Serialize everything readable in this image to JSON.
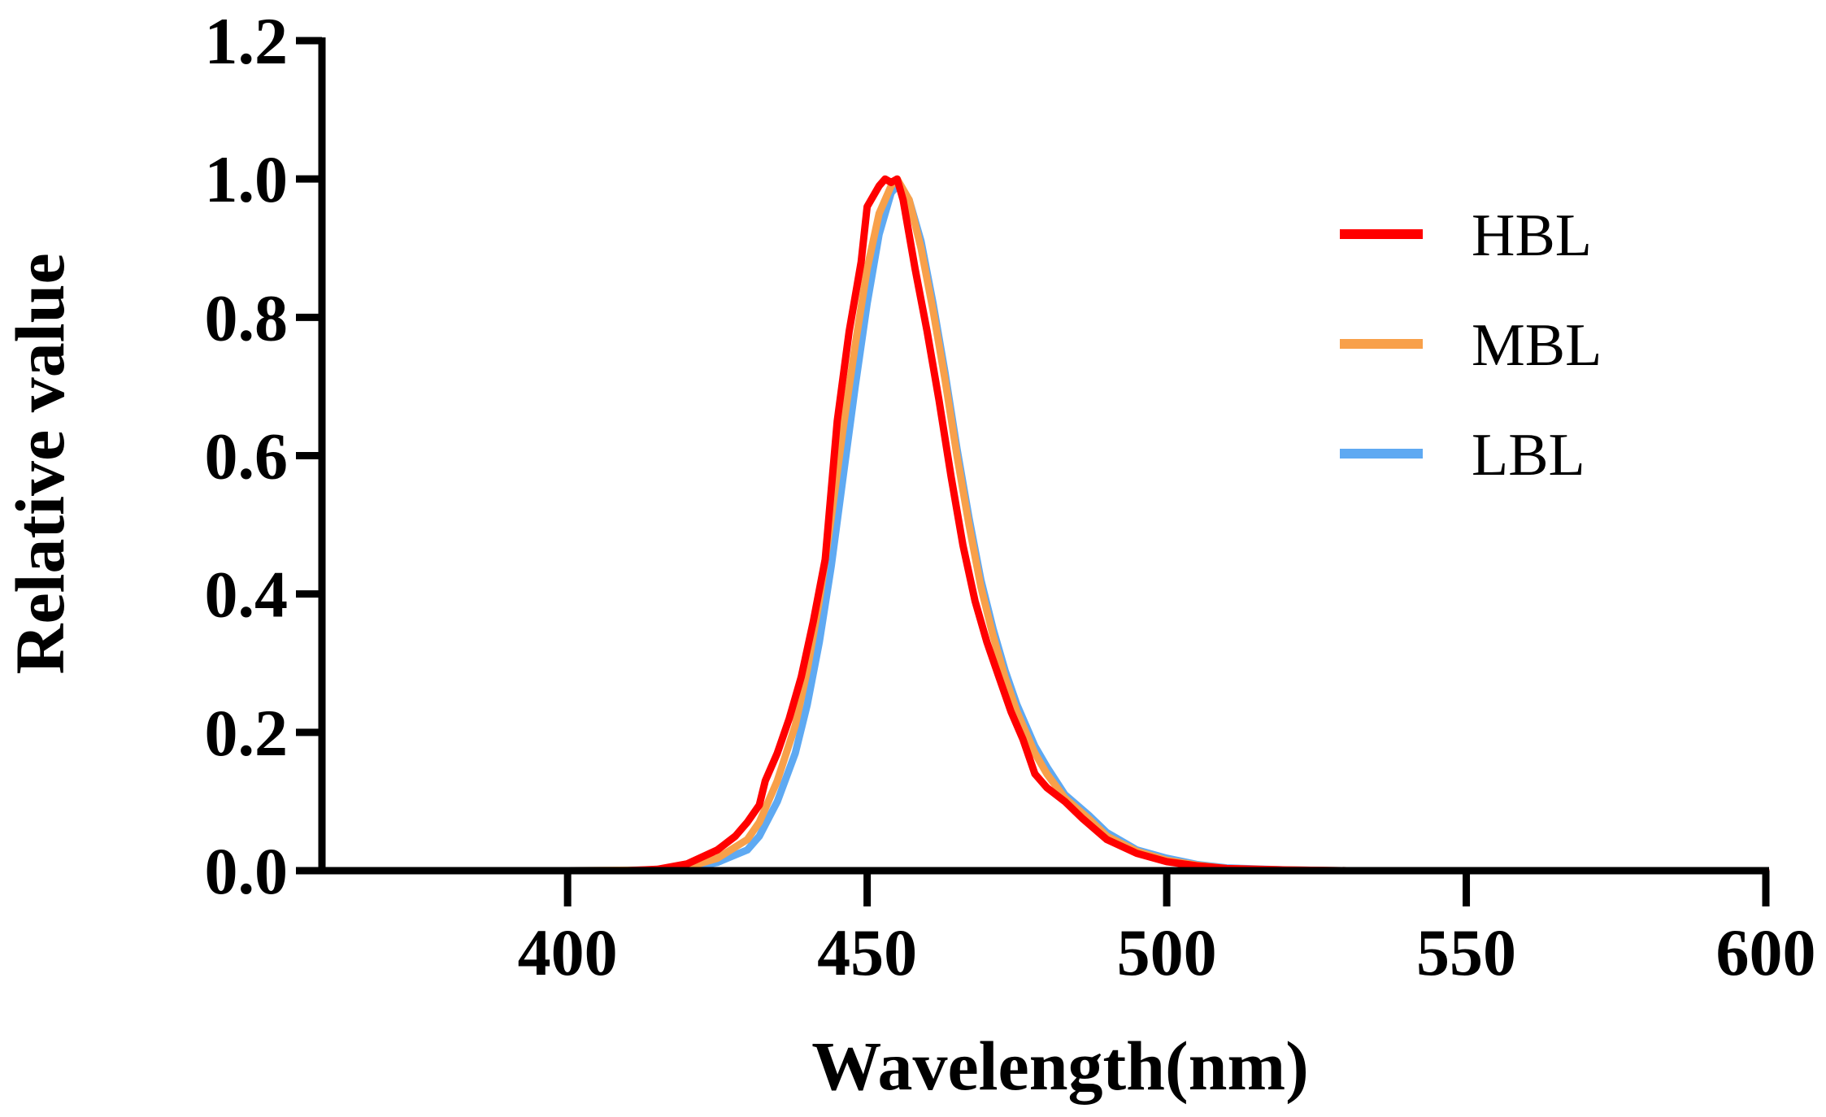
{
  "chart_data": {
    "type": "line",
    "title": "",
    "xlabel": "Wavelength(nm)",
    "ylabel": "Relative value",
    "xlim": [
      359,
      600
    ],
    "ylim": [
      0,
      1.2
    ],
    "xticks": [
      400,
      450,
      500,
      550,
      600
    ],
    "xtick_labels": [
      "400",
      "450",
      "500",
      "550",
      "600"
    ],
    "yticks": [
      0,
      0.2,
      0.4,
      0.6,
      0.8,
      1.0,
      1.2
    ],
    "ytick_labels": [
      "0.0",
      "0.2",
      "0.4",
      "0.6",
      "0.8",
      "1.0",
      "1.2"
    ],
    "grid": false,
    "legend_position": "top-right",
    "colors": {
      "HBL": "#ff0000",
      "MBL": "#f8a04a",
      "LBL": "#5ea9f2",
      "axis": "#000000"
    },
    "series": [
      {
        "name": "LBL",
        "points": [
          [
            360,
            0
          ],
          [
            400,
            0
          ],
          [
            415,
            0.001
          ],
          [
            420,
            0.003
          ],
          [
            425,
            0.012
          ],
          [
            430,
            0.03
          ],
          [
            432,
            0.05
          ],
          [
            435,
            0.1
          ],
          [
            438,
            0.17
          ],
          [
            440,
            0.24
          ],
          [
            442,
            0.33
          ],
          [
            444,
            0.44
          ],
          [
            446,
            0.57
          ],
          [
            448,
            0.7
          ],
          [
            450,
            0.82
          ],
          [
            452,
            0.92
          ],
          [
            454,
            0.98
          ],
          [
            455,
            0.99
          ],
          [
            457,
            0.97
          ],
          [
            459,
            0.91
          ],
          [
            461,
            0.82
          ],
          [
            463,
            0.72
          ],
          [
            465,
            0.61
          ],
          [
            467,
            0.51
          ],
          [
            469,
            0.42
          ],
          [
            471,
            0.35
          ],
          [
            473,
            0.29
          ],
          [
            475,
            0.24
          ],
          [
            478,
            0.18
          ],
          [
            480,
            0.15
          ],
          [
            483,
            0.11
          ],
          [
            487,
            0.08
          ],
          [
            490,
            0.055
          ],
          [
            495,
            0.03
          ],
          [
            500,
            0.018
          ],
          [
            505,
            0.009
          ],
          [
            510,
            0.004
          ],
          [
            520,
            0.001
          ],
          [
            530,
            0
          ],
          [
            560,
            0
          ],
          [
            600,
            0
          ]
        ]
      },
      {
        "name": "MBL",
        "points": [
          [
            360,
            0
          ],
          [
            400,
            0
          ],
          [
            415,
            0.001
          ],
          [
            420,
            0.005
          ],
          [
            425,
            0.018
          ],
          [
            430,
            0.045
          ],
          [
            432,
            0.07
          ],
          [
            435,
            0.13
          ],
          [
            438,
            0.21
          ],
          [
            440,
            0.29
          ],
          [
            442,
            0.39
          ],
          [
            444,
            0.51
          ],
          [
            446,
            0.64
          ],
          [
            448,
            0.76
          ],
          [
            450,
            0.87
          ],
          [
            452,
            0.95
          ],
          [
            454,
            0.99
          ],
          [
            455,
            1.0
          ],
          [
            457,
            0.97
          ],
          [
            459,
            0.9
          ],
          [
            461,
            0.81
          ],
          [
            463,
            0.71
          ],
          [
            465,
            0.6
          ],
          [
            467,
            0.5
          ],
          [
            469,
            0.41
          ],
          [
            471,
            0.34
          ],
          [
            473,
            0.28
          ],
          [
            475,
            0.23
          ],
          [
            478,
            0.17
          ],
          [
            480,
            0.14
          ],
          [
            483,
            0.105
          ],
          [
            487,
            0.075
          ],
          [
            490,
            0.05
          ],
          [
            495,
            0.028
          ],
          [
            500,
            0.015
          ],
          [
            505,
            0.008
          ],
          [
            510,
            0.003
          ],
          [
            520,
            0.001
          ],
          [
            530,
            0
          ],
          [
            560,
            0
          ],
          [
            600,
            0
          ]
        ]
      },
      {
        "name": "HBL",
        "points": [
          [
            360,
            0
          ],
          [
            400,
            0
          ],
          [
            410,
            0
          ],
          [
            415,
            0.002
          ],
          [
            420,
            0.01
          ],
          [
            425,
            0.03
          ],
          [
            428,
            0.05
          ],
          [
            430,
            0.07
          ],
          [
            432,
            0.095
          ],
          [
            433,
            0.13
          ],
          [
            435,
            0.17
          ],
          [
            437,
            0.22
          ],
          [
            439,
            0.28
          ],
          [
            441,
            0.36
          ],
          [
            443,
            0.45
          ],
          [
            444,
            0.55
          ],
          [
            445,
            0.65
          ],
          [
            447,
            0.78
          ],
          [
            449,
            0.88
          ],
          [
            450,
            0.96
          ],
          [
            452,
            0.99
          ],
          [
            453,
            1.0
          ],
          [
            454,
            0.995
          ],
          [
            455,
            1.0
          ],
          [
            456,
            0.97
          ],
          [
            458,
            0.87
          ],
          [
            460,
            0.78
          ],
          [
            462,
            0.68
          ],
          [
            464,
            0.57
          ],
          [
            466,
            0.47
          ],
          [
            468,
            0.39
          ],
          [
            470,
            0.33
          ],
          [
            472,
            0.28
          ],
          [
            474,
            0.23
          ],
          [
            476,
            0.19
          ],
          [
            478,
            0.14
          ],
          [
            480,
            0.12
          ],
          [
            483,
            0.1
          ],
          [
            486,
            0.075
          ],
          [
            490,
            0.045
          ],
          [
            495,
            0.025
          ],
          [
            500,
            0.013
          ],
          [
            505,
            0.007
          ],
          [
            510,
            0.003
          ],
          [
            520,
            0.001
          ],
          [
            530,
            0
          ],
          [
            560,
            0
          ],
          [
            600,
            0
          ]
        ]
      }
    ]
  }
}
